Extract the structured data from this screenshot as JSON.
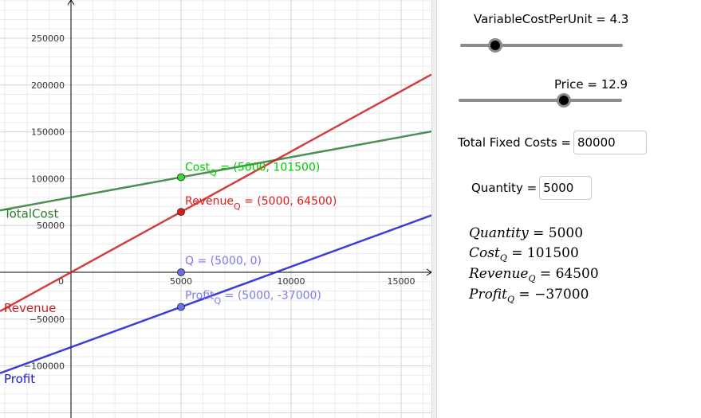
{
  "graph": {
    "x_ticks": [
      {
        "value": 0,
        "label": "0"
      },
      {
        "value": 5000,
        "label": "5000"
      },
      {
        "value": 10000,
        "label": "10000"
      },
      {
        "value": 15000,
        "label": "15000"
      }
    ],
    "y_ticks": [
      {
        "value": 250000,
        "label": "250000"
      },
      {
        "value": 200000,
        "label": "200000"
      },
      {
        "value": 150000,
        "label": "150000"
      },
      {
        "value": 100000,
        "label": "100000"
      },
      {
        "value": 50000,
        "label": "50000"
      },
      {
        "value": -50000,
        "label": "−50000"
      },
      {
        "value": -100000,
        "label": "−100000"
      }
    ],
    "functions": {
      "total_cost": {
        "label": "TotalCost",
        "color": "#2e7d32",
        "slope": 4.3,
        "intercept": 80000
      },
      "revenue": {
        "label": "Revenue",
        "color": "#cc1f1f",
        "slope": 12.9,
        "intercept": 0
      },
      "profit": {
        "label": "Profit",
        "color": "#1a1ad6",
        "slope": 8.6,
        "intercept": -80000
      }
    },
    "points": [
      {
        "name_main": "Cost",
        "name_sub": "Q",
        "coords": " = (5000, 101500)",
        "x": 5000,
        "y": 101500,
        "color": "#00cc00",
        "fill": "#33dd33"
      },
      {
        "name_main": "Revenue",
        "name_sub": "Q",
        "coords": " = (5000, 64500)",
        "x": 5000,
        "y": 64500,
        "color": "#e01b1b",
        "fill": "#e01b1b"
      },
      {
        "name_main": "Q",
        "name_sub": "",
        "coords": " = (5000, 0)",
        "x": 5000,
        "y": 0,
        "color": "#7b7bf0",
        "fill": "#6b6bec"
      },
      {
        "name_main": "Profit",
        "name_sub": "Q",
        "coords": " = (5000, -37000)",
        "x": 5000,
        "y": -37000,
        "color": "#7b7bf0",
        "fill": "#6b6bec"
      }
    ]
  },
  "controls": {
    "variable_cost": {
      "caption": "VariableCostPerUnit = 4.3",
      "value": 4.3,
      "min": 0,
      "max": 20
    },
    "price": {
      "caption": "Price = 12.9",
      "value": 12.9,
      "min": 0,
      "max": 20
    },
    "total_fixed_costs": {
      "label": "Total Fixed Costs = ",
      "value": "80000"
    },
    "quantity": {
      "label": "Quantity = ",
      "value": "5000"
    }
  },
  "results": {
    "quantity": {
      "name": "Quantity",
      "sub": "",
      "value": "5000"
    },
    "cost": {
      "name": "Cost",
      "sub": "Q",
      "value": "101500"
    },
    "revenue": {
      "name": "Revenue",
      "sub": "Q",
      "value": "64500"
    },
    "profit": {
      "name": "Profit",
      "sub": "Q",
      "value": "−37000"
    }
  }
}
